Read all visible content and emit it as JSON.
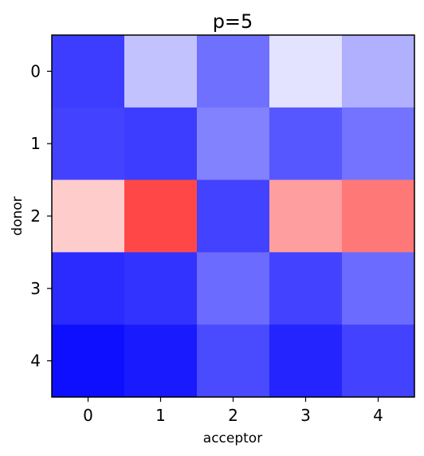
{
  "chart_data": {
    "type": "heatmap",
    "title": "p=5",
    "xlabel": "acceptor",
    "ylabel": "donor",
    "x_categories": [
      "0",
      "1",
      "2",
      "3",
      "4"
    ],
    "y_categories": [
      "0",
      "1",
      "2",
      "3",
      "4"
    ],
    "values": [
      [
        0.76,
        0.24,
        0.56,
        0.11,
        0.31
      ],
      [
        0.74,
        0.76,
        0.49,
        0.66,
        0.55
      ],
      [
        -0.2,
        -0.72,
        0.74,
        -0.38,
        -0.53
      ],
      [
        0.83,
        0.8,
        0.58,
        0.74,
        0.58
      ],
      [
        0.94,
        0.9,
        0.71,
        0.86,
        0.74
      ]
    ],
    "colormap": "bwr",
    "color_range": [
      -1,
      1
    ],
    "colors": {
      "low": "#ff0000",
      "mid": "#ffffff",
      "high": "#0000ff"
    },
    "grid": false,
    "legend": "none"
  }
}
